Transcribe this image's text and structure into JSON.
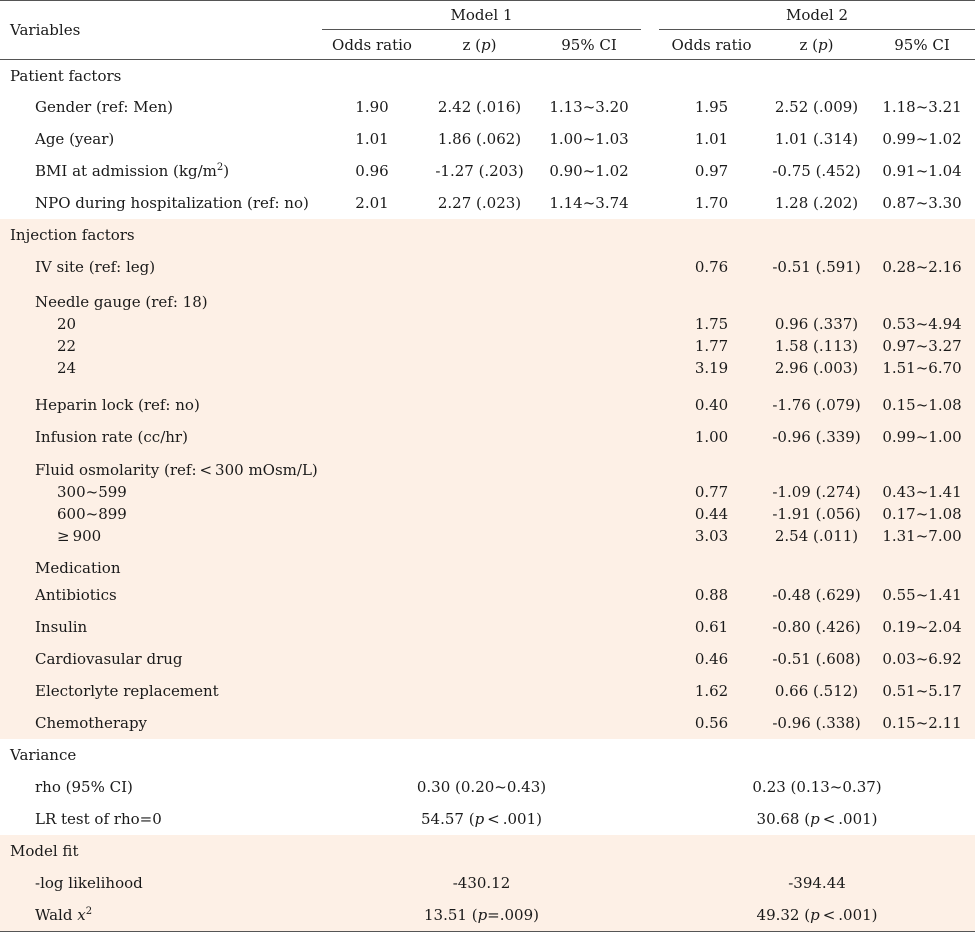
{
  "header": {
    "variables": "Variables",
    "model1": "Model 1",
    "model2": "Model 2",
    "cols": [
      "Odds ratio",
      "z (p)",
      "95% CI"
    ]
  },
  "sections": {
    "patient": "Patient factors",
    "injection": "Injection factors",
    "variance": "Variance",
    "fit": "Model fit"
  },
  "patient_rows": [
    {
      "label": "Gender (ref: Men)",
      "m1": [
        "1.90",
        "2.42 (.016)",
        "1.13~3.20"
      ],
      "m2": [
        "1.95",
        "2.52 (.009)",
        "1.18~3.21"
      ]
    },
    {
      "label": "Age (year)",
      "m1": [
        "1.01",
        "1.86 (.062)",
        "1.00~1.03"
      ],
      "m2": [
        "1.01",
        "1.01 (.314)",
        "0.99~1.02"
      ]
    },
    {
      "label_pre": "BMI at admission (kg/m",
      "label_sup": "2",
      "label_post": ")",
      "m1": [
        "0.96",
        "-1.27 (.203)",
        "0.90~1.02"
      ],
      "m2": [
        "0.97",
        "-0.75 (.452)",
        "0.91~1.04"
      ]
    },
    {
      "label": "NPO during hospitalization (ref: no)",
      "m1": [
        "2.01",
        "2.27 (.023)",
        "1.14~3.74"
      ],
      "m2": [
        "1.70",
        "1.28 (.202)",
        "0.87~3.30"
      ]
    }
  ],
  "injection": {
    "iv_site": {
      "label": "IV site (ref: leg)",
      "m2": [
        "0.76",
        "-0.51 (.591)",
        "0.28~2.16"
      ]
    },
    "needle": {
      "label": "Needle gauge (ref: 18)",
      "levels": [
        "20",
        "22",
        "24"
      ],
      "or": [
        "1.75",
        "1.77",
        "3.19"
      ],
      "z": [
        "0.96 (.337)",
        "1.58 (.113)",
        "2.96 (.003)"
      ],
      "ci": [
        "0.53~4.94",
        "0.97~3.27",
        "1.51~6.70"
      ]
    },
    "heparin": {
      "label": "Heparin lock (ref: no)",
      "m2": [
        "0.40",
        "-1.76 (.079)",
        "0.15~1.08"
      ]
    },
    "infusion": {
      "label": "Infusion rate (cc/hr)",
      "m2": [
        "1.00",
        "-0.96 (.339)",
        "0.99~1.00"
      ]
    },
    "osm": {
      "label": "Fluid osmolarity (ref: < 300 mOsm/L)",
      "levels": [
        "300~599",
        "600~899",
        "≥ 900"
      ],
      "or": [
        "0.77",
        "0.44",
        "3.03"
      ],
      "z": [
        "-1.09 (.274)",
        "-1.91 (.056)",
        "2.54 (.011)"
      ],
      "ci": [
        "0.43~1.41",
        "0.17~1.08",
        "1.31~7.00"
      ]
    },
    "medication": "Medication",
    "meds": [
      {
        "label": "Antibiotics",
        "m2": [
          "0.88",
          "-0.48 (.629)",
          "0.55~1.41"
        ]
      },
      {
        "label": "Insulin",
        "m2": [
          "0.61",
          "-0.80 (.426)",
          "0.19~2.04"
        ]
      },
      {
        "label": "Cardiovasular drug",
        "m2": [
          "0.46",
          "-0.51 (.608)",
          "0.03~6.92"
        ]
      },
      {
        "label": "Electorlyte replacement",
        "m2": [
          "1.62",
          "0.66 (.512)",
          "0.51~5.17"
        ]
      },
      {
        "label": "Chemotherapy",
        "m2": [
          "0.56",
          "-0.96 (.338)",
          "0.15~2.11"
        ]
      }
    ]
  },
  "variance": {
    "rho_label": "rho (95% CI)",
    "rho_m1": "0.30 (0.20~0.43)",
    "rho_m2": "0.23 (0.13~0.37)",
    "lr_label": "LR test of rho=0",
    "lr_m1_val": "54.57 (",
    "lr_m1_p": "p",
    "lr_m1_rest": " < .001)",
    "lr_m2_val": "30.68 (",
    "lr_m2_p": "p",
    "lr_m2_rest": " < .001)"
  },
  "fit": {
    "ll_label": "-log likelihood",
    "ll_m1": "-430.12",
    "ll_m2": "-394.44",
    "wald_label": "Wald ",
    "wald_x": "x",
    "wald_sup": "2",
    "wald_m1_val": "13.51 (",
    "wald_m1_p": "p",
    "wald_m1_rest": "=.009)",
    "wald_m2_val": "49.32 (",
    "wald_m2_p": "p",
    "wald_m2_rest": " < .001)"
  }
}
